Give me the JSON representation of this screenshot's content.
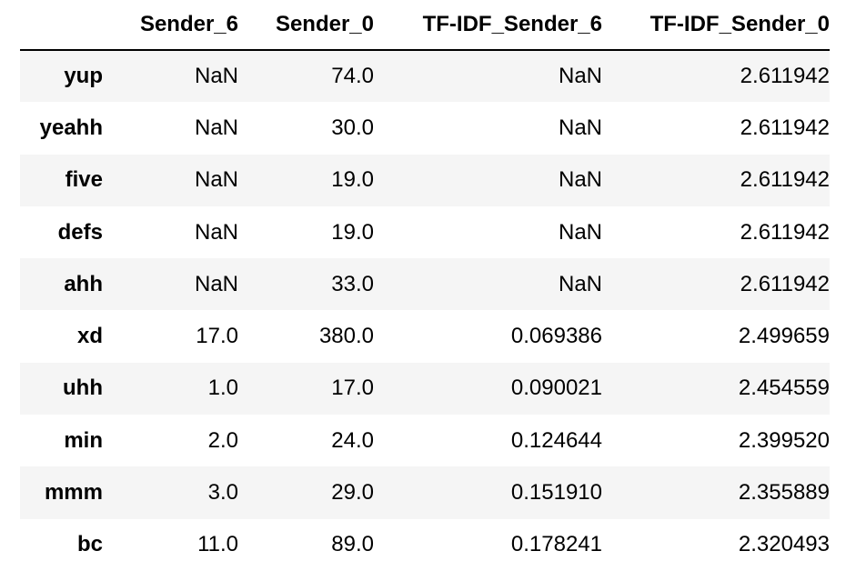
{
  "table": {
    "index_header": "",
    "columns": [
      "Sender_6",
      "Sender_0",
      "TF-IDF_Sender_6",
      "TF-IDF_Sender_0"
    ],
    "rows": [
      {
        "index": "yup",
        "cells": [
          "NaN",
          "74.0",
          "NaN",
          "2.611942"
        ]
      },
      {
        "index": "yeahh",
        "cells": [
          "NaN",
          "30.0",
          "NaN",
          "2.611942"
        ]
      },
      {
        "index": "five",
        "cells": [
          "NaN",
          "19.0",
          "NaN",
          "2.611942"
        ]
      },
      {
        "index": "defs",
        "cells": [
          "NaN",
          "19.0",
          "NaN",
          "2.611942"
        ]
      },
      {
        "index": "ahh",
        "cells": [
          "NaN",
          "33.0",
          "NaN",
          "2.611942"
        ]
      },
      {
        "index": "xd",
        "cells": [
          "17.0",
          "380.0",
          "0.069386",
          "2.499659"
        ]
      },
      {
        "index": "uhh",
        "cells": [
          "1.0",
          "17.0",
          "0.090021",
          "2.454559"
        ]
      },
      {
        "index": "min",
        "cells": [
          "2.0",
          "24.0",
          "0.124644",
          "2.399520"
        ]
      },
      {
        "index": "mmm",
        "cells": [
          "3.0",
          "29.0",
          "0.151910",
          "2.355889"
        ]
      },
      {
        "index": "bc",
        "cells": [
          "11.0",
          "89.0",
          "0.178241",
          "2.320493"
        ]
      }
    ]
  }
}
